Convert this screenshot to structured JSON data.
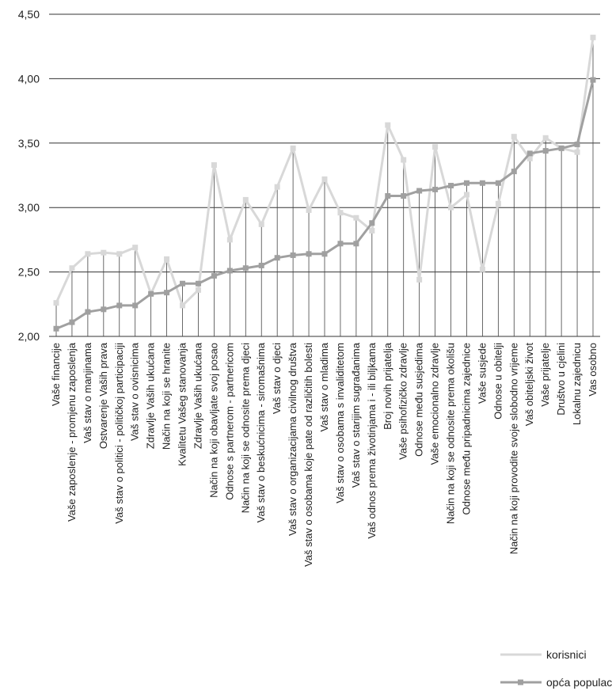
{
  "chart_data": {
    "type": "line",
    "title": "",
    "xlabel": "",
    "ylabel": "",
    "ylim": [
      2.0,
      4.5
    ],
    "y_ticks": [
      "2,00",
      "2,50",
      "3,00",
      "3,50",
      "4,00",
      "4,50"
    ],
    "y_tick_values": [
      2.0,
      2.5,
      3.0,
      3.5,
      4.0,
      4.5
    ],
    "grid": "horizontal",
    "drop_lines": true,
    "legend_position": "bottom-right",
    "categories": [
      "Vaše financije",
      "Vaše zaposlenje - promjenu zaposlenja",
      "Vaš stav o manjinama",
      "Ostvarenje Vaših prava",
      "Vaš stav o politici - političkoj participaciji",
      "Vaš stav o ovisnicima",
      "Zdravlje Vaših ukućana",
      "Način na koji se hranite",
      "Kvalitetu Vašeg stanovanja",
      "Zdravlje Vaših ukućana",
      "Način na koji obavljate svoj posao",
      "Odnose s partnerom - partnericom",
      "Način na koji se odnosite prema djeci",
      "Vaš stav o beskućnicima - siromašnima",
      "Vaš stav o djeci",
      "Vaš stav o organizacijama civilnog društva",
      "Vaš stav o osobama koje pate od različitih bolesti",
      "Vaš stav o mladima",
      "Vaš stav o osobama s invaliditetom",
      "Vaš stav o starijim sugrađanima",
      "Vaš odnos prema životinjama i - ili biljkama",
      "Broj novih prijatelja",
      "Vaše psihofizičko zdravlje",
      "Odnose među susjedima",
      "Vaše emocionalno zdravlje",
      "Način na koji se odnosite prema okolišu",
      "Odnose među pripadnicima zajednice",
      "Vaše susjede",
      "Odnose u obitelji",
      "Način na koji provodite svoje slobodno vrijeme",
      "Vaš obiteljski život",
      "Vaše prijatelje",
      "Društvo u cjelini",
      "Lokalnu zajednicu",
      "Vas osobno"
    ],
    "series": [
      {
        "name": "korisnici",
        "color": "#d8d8d8",
        "values": [
          2.26,
          2.53,
          2.64,
          2.65,
          2.64,
          2.69,
          2.33,
          2.6,
          2.24,
          2.36,
          3.33,
          2.75,
          3.06,
          2.87,
          3.16,
          3.46,
          2.98,
          3.22,
          2.96,
          2.92,
          2.82,
          3.64,
          3.37,
          2.44,
          3.47,
          3.0,
          3.1,
          2.52,
          3.03,
          3.55,
          3.38,
          3.54,
          3.46,
          3.43,
          4.32
        ]
      },
      {
        "name": "opća populacija",
        "color": "#a0a0a0",
        "values": [
          2.06,
          2.11,
          2.19,
          2.21,
          2.24,
          2.24,
          2.33,
          2.34,
          2.41,
          2.41,
          2.47,
          2.51,
          2.53,
          2.55,
          2.61,
          2.63,
          2.64,
          2.64,
          2.72,
          2.72,
          2.88,
          3.09,
          3.09,
          3.13,
          3.14,
          3.17,
          3.19,
          3.19,
          3.19,
          3.28,
          3.42,
          3.44,
          3.46,
          3.49,
          3.99
        ]
      }
    ]
  }
}
